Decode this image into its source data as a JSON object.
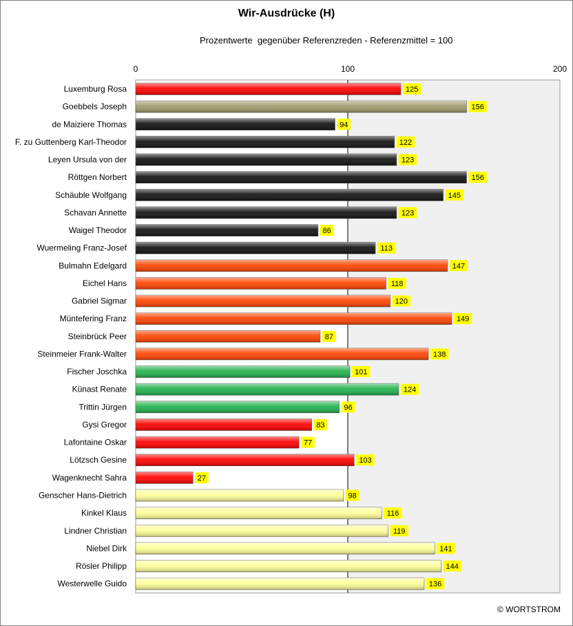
{
  "title": "Wir-Ausdrücke (H)",
  "subtitle": "Prozentwerte  gegenüber Referenzreden - Referenzmittel = 100",
  "copyright": "© WORTSTROM",
  "colors": {
    "red": "#ff0000",
    "olive": "#a09a6a",
    "black": "#111111",
    "orange": "#ff4400",
    "green": "#22b14c",
    "paleyellow": "#ffff99",
    "label_bg": "#ffff00",
    "plot_bg_right": "#f0f0f0"
  },
  "chart_data": {
    "type": "bar",
    "orientation": "horizontal",
    "xlim": [
      0,
      200
    ],
    "xticks": [
      "0",
      "100",
      "200"
    ],
    "reference_line": 100,
    "grid": false,
    "categories": [
      "Luxemburg Rosa",
      "Goebbels Joseph",
      "de Maiziere Thomas",
      "F. zu Guttenberg Karl-Theodor",
      "Leyen Ursula von der",
      "Röttgen Norbert",
      "Schäuble Wolfgang",
      "Schavan Annette",
      "Waigel Theodor",
      "Wuermeling Franz-Josef",
      "Bulmahn Edelgard",
      "Eichel Hans",
      "Gabriel Sigmar",
      "Müntefering Franz",
      "Steinbrück Peer",
      "Steinmeier Frank-Walter",
      "Fischer Joschka",
      "Künast Renate",
      "Trittin Jürgen",
      "Gysi Gregor",
      "Lafontaine Oskar",
      "Lötzsch Gesine",
      "Wagenknecht Sahra",
      "Genscher Hans-Dietrich",
      "Kinkel Klaus",
      "Lindner Christian",
      "Niebel Dirk",
      "Rösler Philipp",
      "Westerwelle Guido"
    ],
    "values": [
      125,
      156,
      94,
      122,
      123,
      156,
      145,
      123,
      86,
      113,
      147,
      118,
      120,
      149,
      87,
      138,
      101,
      124,
      96,
      83,
      77,
      103,
      27,
      98,
      116,
      119,
      141,
      144,
      136
    ],
    "bar_colors": [
      "red",
      "olive",
      "black",
      "black",
      "black",
      "black",
      "black",
      "black",
      "black",
      "black",
      "orange",
      "orange",
      "orange",
      "orange",
      "orange",
      "orange",
      "green",
      "green",
      "green",
      "red",
      "red",
      "red",
      "red",
      "paleyellow",
      "paleyellow",
      "paleyellow",
      "paleyellow",
      "paleyellow",
      "paleyellow"
    ]
  }
}
